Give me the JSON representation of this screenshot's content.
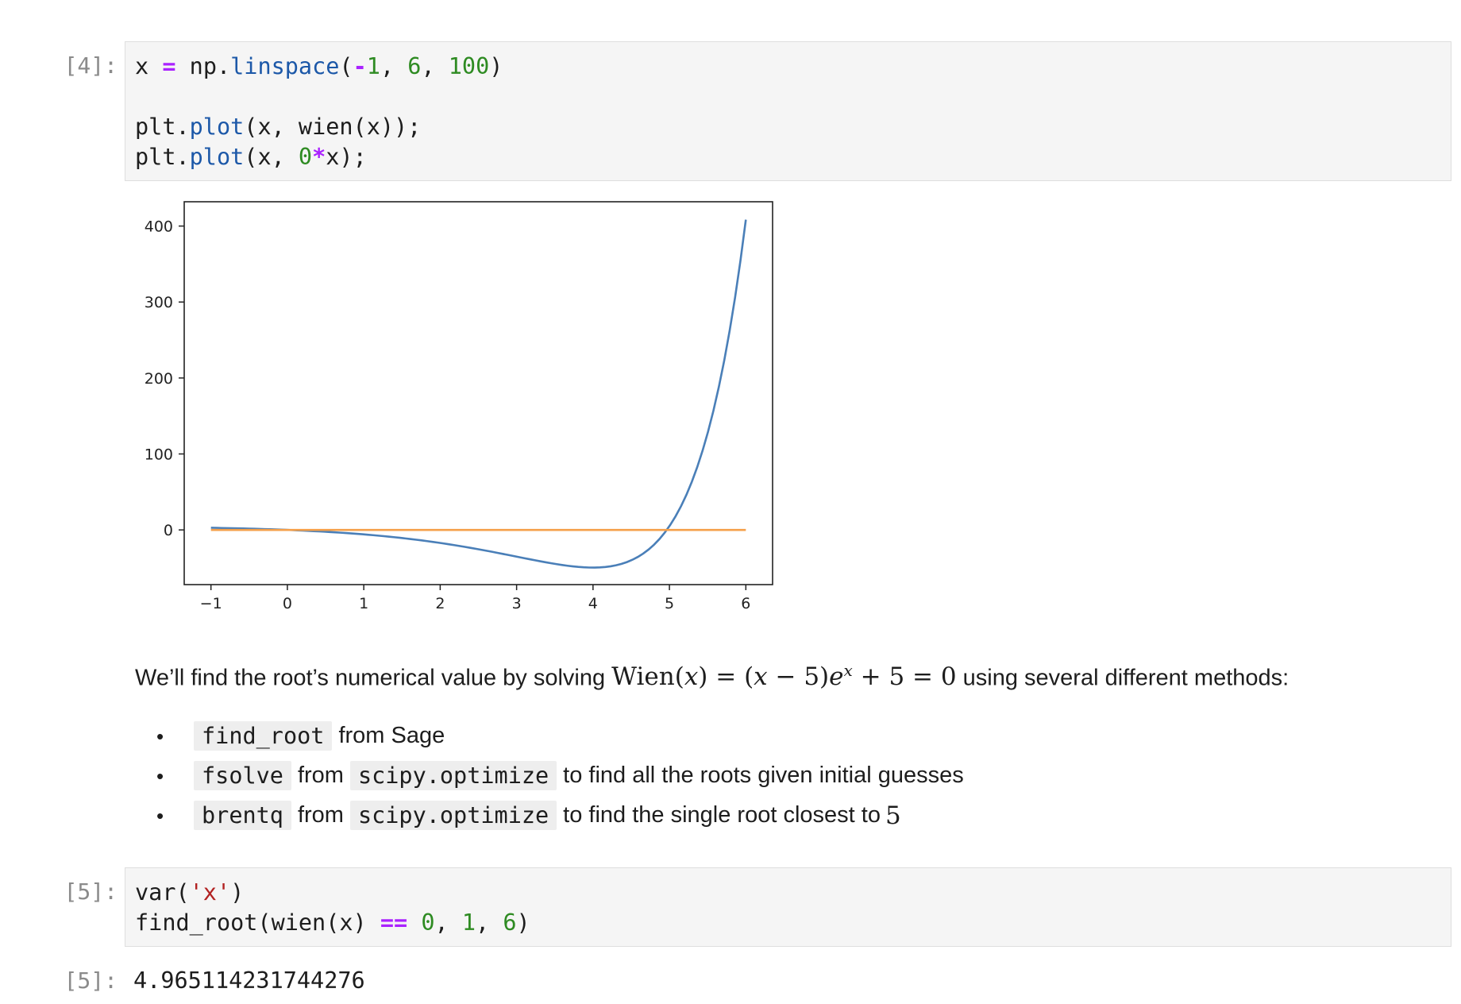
{
  "cell4": {
    "prompt": "[4]:",
    "lines": [
      [
        {
          "t": "x ",
          "c": ""
        },
        {
          "t": "=",
          "c": "op"
        },
        {
          "t": " np.",
          "c": ""
        },
        {
          "t": "linspace",
          "c": "fn"
        },
        {
          "t": "(",
          "c": ""
        },
        {
          "t": "-",
          "c": "op"
        },
        {
          "t": "1",
          "c": "num"
        },
        {
          "t": ", ",
          "c": ""
        },
        {
          "t": "6",
          "c": "num"
        },
        {
          "t": ", ",
          "c": ""
        },
        {
          "t": "100",
          "c": "num"
        },
        {
          "t": ")",
          "c": ""
        }
      ],
      [],
      [
        {
          "t": "plt.",
          "c": ""
        },
        {
          "t": "plot",
          "c": "fn"
        },
        {
          "t": "(x, wien(x));",
          "c": ""
        }
      ],
      [
        {
          "t": "plt.",
          "c": ""
        },
        {
          "t": "plot",
          "c": "fn"
        },
        {
          "t": "(x, ",
          "c": ""
        },
        {
          "t": "0",
          "c": "num"
        },
        {
          "t": "*",
          "c": "op"
        },
        {
          "t": "x);",
          "c": ""
        }
      ]
    ]
  },
  "chart_data": {
    "type": "line",
    "xlim": [
      -1.35,
      6.35
    ],
    "ylim": [
      -72,
      432
    ],
    "xticks": [
      -1,
      0,
      1,
      2,
      3,
      4,
      5,
      6
    ],
    "xtick_labels": [
      "−1",
      "0",
      "1",
      "2",
      "3",
      "4",
      "5",
      "6"
    ],
    "yticks": [
      0,
      100,
      200,
      300,
      400
    ],
    "ytick_labels": [
      "0",
      "100",
      "200",
      "300",
      "400"
    ],
    "grid": false,
    "series": [
      {
        "color": "#4a7fb8",
        "function": "(x-5)*exp(x)+5",
        "x_range": [
          -1,
          6
        ],
        "n_points": 100
      },
      {
        "color": "#f5a04a",
        "function": "0*x",
        "x_range": [
          -1,
          6
        ],
        "n_points": 100
      }
    ]
  },
  "markdown": {
    "intro_before": "We’ll find the root’s numerical value by solving ",
    "intro_after": " using several different methods:",
    "bullets": [
      {
        "code1": "find_root",
        "t1": "from Sage",
        "code2": "",
        "t2": ""
      },
      {
        "code1": "fsolve",
        "t1": "from",
        "code2": "scipy.optimize",
        "t2": "to find all the roots given initial guesses"
      },
      {
        "code1": "brentq",
        "t1": "from",
        "code2": "scipy.optimize",
        "t2": "to find the single root closest to "
      }
    ],
    "root_guess": "5"
  },
  "cell5": {
    "prompt": "[5]:",
    "lines": [
      [
        {
          "t": "var(",
          "c": ""
        },
        {
          "t": "'x'",
          "c": "str"
        },
        {
          "t": ")",
          "c": ""
        }
      ],
      [
        {
          "t": "find_root(wien(x) ",
          "c": ""
        },
        {
          "t": "==",
          "c": "op"
        },
        {
          "t": " ",
          "c": ""
        },
        {
          "t": "0",
          "c": "num"
        },
        {
          "t": ", ",
          "c": ""
        },
        {
          "t": "1",
          "c": "num"
        },
        {
          "t": ", ",
          "c": ""
        },
        {
          "t": "6",
          "c": "num"
        },
        {
          "t": ")",
          "c": ""
        }
      ]
    ]
  },
  "output5": {
    "prompt": "[5]:",
    "value": "4.965114231744276"
  }
}
